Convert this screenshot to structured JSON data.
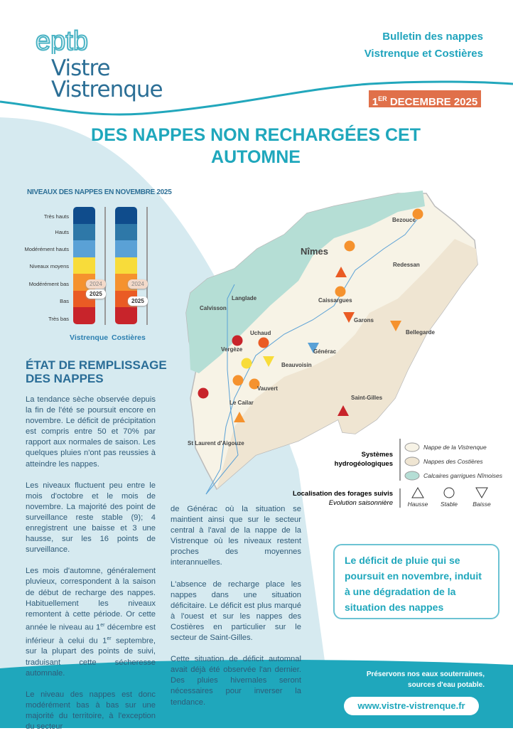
{
  "header": {
    "logo_top": "eptb",
    "logo_line1": "Vistre",
    "logo_line2": "Vistrenque",
    "bulletin_line1": "Bulletin des nappes",
    "bulletin_line2": "Vistrenque et Costières",
    "date_day": "1",
    "date_sup": "ER",
    "date_rest": " DECEMBRE 2025"
  },
  "title": "DES NAPPES NON RECHARGÉES CET AUTOMNE",
  "gauge": {
    "title": "NIVEAUX DES NAPPES EN NOVEMBRE 2025",
    "levels": [
      "Très hauts",
      "Hauts",
      "Modérément hauts",
      "Niveaux moyens",
      "Modérément bas",
      "Bas",
      "Très bas"
    ],
    "colors": [
      "#0f4c8c",
      "#2e78a8",
      "#5aa1d6",
      "#f8dc3a",
      "#f5922e",
      "#ea5b24",
      "#c8242b"
    ],
    "columns": [
      {
        "name": "Vistrenque",
        "tag_2024": "2024",
        "tag_2025": "2025",
        "level_2024": "Modérément bas",
        "level_2025": "Modérément bas"
      },
      {
        "name": "Costières",
        "tag_2024": "2024",
        "tag_2025": "2025",
        "level_2024": "Modérément bas",
        "level_2025": "Bas"
      }
    ]
  },
  "section": {
    "heading_line1": "ÉTAT DE REMPLISSAGE",
    "heading_line2": "DES NAPPES",
    "p1": "La tendance sèche observée depuis la fin de l'été se poursuit encore en novembre. Le déficit de précipitation est compris entre 50 et 70% par rapport aux normales de saison. Les quelques pluies n'ont pas reussies à atteindre les nappes.",
    "p2": "Les niveaux fluctuent peu entre le mois d'octobre et le mois de novembre. La majorité des point de surveillance reste stable (9); 4 enregistrent une baisse et 3 une hausse, sur les 16 points de surveillance.",
    "p3a": "Les mois d'automne, généralement pluvieux, correspondent à la saison de début de recharge des nappes. Habituellement les niveaux remontent à cette période. Or cette année le niveau au 1",
    "p3sup1": "er",
    "p3b": " décembre est inférieur à celui du 1",
    "p3sup2": "er",
    "p3c": " septembre, sur la plupart des points de suivi, traduisant cette sécheresse automnale.",
    "p4": "Le niveau des nappes est donc modérément bas à bas sur une majorité du territoire, à l'exception du secteur",
    "p5": "de Générac où la situation se maintient ainsi que sur le secteur central à l'aval de la nappe de la Vistrenque où les niveaux restent proches des moyennes interannuelles.",
    "p6": "L'absence de recharge place les nappes dans une situation déficitaire. Le déficit est plus marqué à l'ouest et sur les nappes des Costières en particulier sur le secteur de Saint-Gilles.",
    "p7": "Cette situation de déficit automnal avait déjà été observée l'an dernier. Des pluies hivernales seront nécessaires pour inverser la tendance."
  },
  "map": {
    "places": [
      "Bezouce",
      "Nîmes",
      "Redessan",
      "Langlade",
      "Calvisson",
      "Caissargues",
      "Garons",
      "Bellegarde",
      "Uchaud",
      "Vergèze",
      "Générac",
      "Beauvoisin",
      "Vauvert",
      "Le Cailar",
      "Saint-Gilles",
      "St Laurent d'Aigouze"
    ],
    "legend": {
      "systems_title_1": "Systèmes",
      "systems_title_2": "hydrogéologiques",
      "systems": [
        "Nappe de la Vistrenque",
        "Nappes des Costières",
        "Calcaires garrigues Nîmoises"
      ],
      "system_colors": [
        "#f7f3e6",
        "#efe5d2",
        "#b5ded5"
      ],
      "wells_title": "Localisation des forages suivis",
      "wells_sub": "Evolution saisonnière",
      "trends": [
        "Hausse",
        "Stable",
        "Baisse"
      ]
    }
  },
  "callout": "Le déficit de pluie qui se poursuit en novembre, induit à une dégradation de la situation des nappes",
  "footer": {
    "slogan_line1": "Préservons nos eaux souterraines,",
    "slogan_line2": "sources d'eau potable.",
    "url": "www.vistre-vistrenque.fr"
  },
  "colors": {
    "accent": "#1fa7bc",
    "date_bg": "#e0704a",
    "light_bg": "#d6eaf0"
  }
}
